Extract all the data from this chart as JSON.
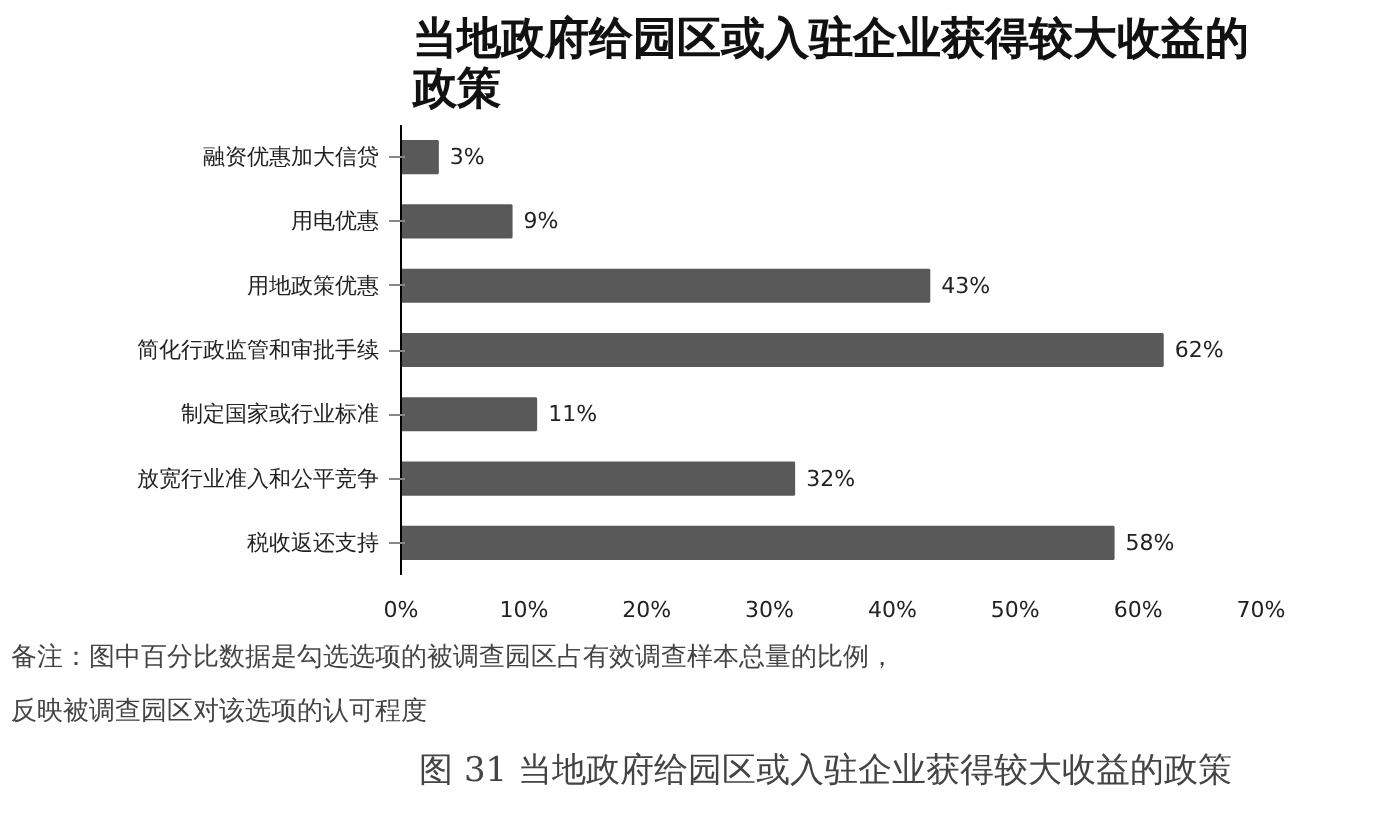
{
  "chart_data": {
    "type": "bar",
    "orientation": "horizontal",
    "title": "当地政府给园区或入驻企业获得较大收益的政策",
    "categories": [
      "融资优惠加大信贷",
      "用电优惠",
      "用地政策优惠",
      "简化行政监管和审批手续",
      "制定国家或行业标准",
      "放宽行业准入和公平竞争",
      "税收返还支持"
    ],
    "values": [
      3,
      9,
      43,
      62,
      11,
      32,
      58
    ],
    "value_labels": [
      "3%",
      "9%",
      "43%",
      "62%",
      "11%",
      "32%",
      "58%"
    ],
    "color": "#595959",
    "xlim": [
      0,
      70
    ],
    "xticks": [
      {
        "value": 0,
        "label": "0%"
      },
      {
        "value": 10,
        "label": "10%"
      },
      {
        "value": 20,
        "label": "20%"
      },
      {
        "value": 30,
        "label": "30%"
      },
      {
        "value": 40,
        "label": "40%"
      },
      {
        "value": 50,
        "label": "50%"
      },
      {
        "value": 60,
        "label": "60%"
      },
      {
        "value": 70,
        "label": "70%"
      }
    ],
    "annotations": [
      "备注：图中百分比数据是勾选选项的被调查园区占有效调查样本总量的比例，反映被调查园区对该选项的认可程度",
      "图 31  当地政府给园区或入驻企业获得较大收益的政策"
    ]
  }
}
